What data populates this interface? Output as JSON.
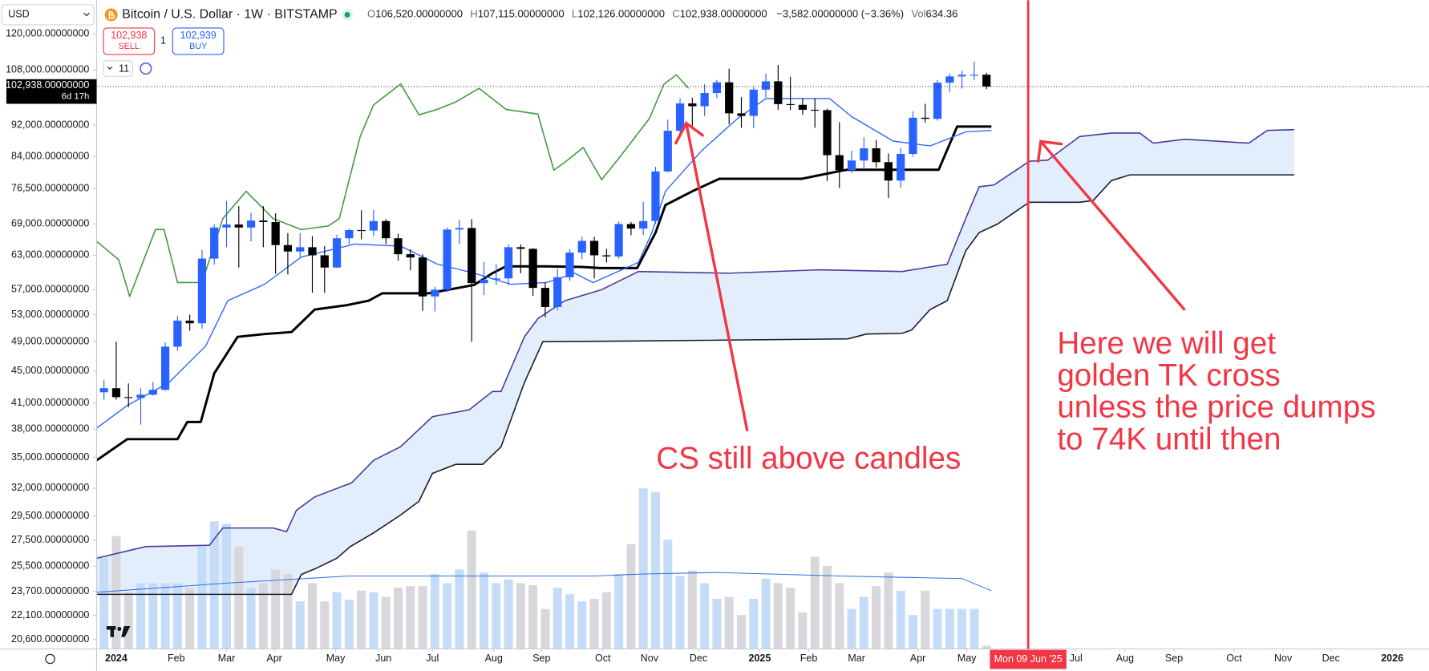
{
  "ui": {
    "currency": "USD",
    "symbol": "Bitcoin / U.S. Dollar · 1W · BITSTAMP",
    "ohlc": [
      {
        "key": "O",
        "value": "106,520.00000000"
      },
      {
        "key": "H",
        "value": "107,115.00000000"
      },
      {
        "key": "L",
        "value": "102,126.00000000"
      },
      {
        "key": "C",
        "value": "102,938.00000000"
      }
    ],
    "change": "−3,582.00000000 (−3.36%)",
    "volume_key": "Vol",
    "volume_value": "634.36",
    "sell_price": "102,938",
    "sell": "SELL",
    "quantity": "1",
    "buy_price": "102,939",
    "buy": "BUY",
    "indicators": "11"
  },
  "chart_data": {
    "type": "candlestick",
    "ylog": true,
    "grid": false,
    "ylim": [
      20050,
      132300
    ],
    "yticks": [
      {
        "value": 120000,
        "label": "120,000.00000000"
      },
      {
        "value": 108000,
        "label": "108,000.00000000"
      },
      {
        "value": 92000,
        "label": "92,000.00000000"
      },
      {
        "value": 84000,
        "label": "84,000.00000000"
      },
      {
        "value": 76500,
        "label": "76,500.00000000"
      },
      {
        "value": 69000,
        "label": "69,000.00000000"
      },
      {
        "value": 63000,
        "label": "63,000.00000000"
      },
      {
        "value": 57000,
        "label": "57,000.00000000"
      },
      {
        "value": 53000,
        "label": "53,000.00000000"
      },
      {
        "value": 49000,
        "label": "49,000.00000000"
      },
      {
        "value": 45000,
        "label": "45,000.00000000"
      },
      {
        "value": 41000,
        "label": "41,000.00000000"
      },
      {
        "value": 38000,
        "label": "38,000.00000000"
      },
      {
        "value": 35000,
        "label": "35,000.00000000"
      },
      {
        "value": 32000,
        "label": "32,000.00000000"
      },
      {
        "value": 29500,
        "label": "29,500.00000000"
      },
      {
        "value": 27500,
        "label": "27,500.00000000"
      },
      {
        "value": 25500,
        "label": "25,500.00000000"
      },
      {
        "value": 23700,
        "label": "23,700.00000000"
      },
      {
        "value": 22100,
        "label": "22,100.00000000"
      },
      {
        "value": 20600,
        "label": "20,600.00000000"
      }
    ],
    "xlim": [
      -0.6,
      108.1
    ],
    "xticks": [
      {
        "value": 1,
        "label": "2024"
      },
      {
        "value": 5.9,
        "label": "Feb"
      },
      {
        "value": 10,
        "label": "Mar"
      },
      {
        "value": 13.9,
        "label": "Apr"
      },
      {
        "value": 18.9,
        "label": "May"
      },
      {
        "value": 22.8,
        "label": "Jun"
      },
      {
        "value": 26.8,
        "label": "Jul"
      },
      {
        "value": 31.8,
        "label": "Aug"
      },
      {
        "value": 35.7,
        "label": "Sep"
      },
      {
        "value": 40.7,
        "label": "Oct"
      },
      {
        "value": 44.5,
        "label": "Nov"
      },
      {
        "value": 48.5,
        "label": "Dec"
      },
      {
        "value": 53.5,
        "label": "2025"
      },
      {
        "value": 57.5,
        "label": "Feb"
      },
      {
        "value": 61.4,
        "label": "Mar"
      },
      {
        "value": 66.4,
        "label": "Apr"
      },
      {
        "value": 70.4,
        "label": "May"
      },
      {
        "value": 79.3,
        "label": "Jul"
      },
      {
        "value": 83.3,
        "label": "Aug"
      },
      {
        "value": 87.3,
        "label": "Sep"
      },
      {
        "value": 92.2,
        "label": "Oct"
      },
      {
        "value": 96.2,
        "label": "Nov"
      },
      {
        "value": 100.1,
        "label": "Dec"
      },
      {
        "value": 105.1,
        "label": "2026"
      }
    ],
    "x": [
      0,
      1,
      2,
      3,
      4,
      5,
      6,
      7,
      8,
      9,
      10,
      11,
      12,
      13,
      14,
      15,
      16,
      17,
      18,
      19,
      20,
      21,
      22,
      23,
      24,
      25,
      26,
      27,
      28,
      29,
      30,
      31,
      32,
      33,
      34,
      35,
      36,
      37,
      38,
      39,
      40,
      41,
      42,
      43,
      44,
      45,
      46,
      47,
      48,
      49,
      50,
      51,
      52,
      53,
      54,
      55,
      56,
      57,
      58,
      59,
      60,
      61,
      62,
      63,
      64,
      65,
      66,
      67,
      68,
      69,
      70,
      71,
      72
    ],
    "open": [
      42300,
      42800,
      41700,
      41600,
      42000,
      42600,
      48300,
      52100,
      51700,
      62400,
      68300,
      68900,
      68300,
      69700,
      69400,
      64900,
      63700,
      64500,
      63000,
      60800,
      66200,
      67800,
      67700,
      69600,
      66200,
      63200,
      62600,
      55900,
      57000,
      67900,
      68200,
      58100,
      58700,
      58900,
      64500,
      64200,
      57300,
      54200,
      59100,
      63500,
      65700,
      63000,
      62800,
      69000,
      68100,
      69600,
      80400,
      90500,
      98000,
      97200,
      101000,
      104200,
      95200,
      94500,
      102000,
      104500,
      97800,
      97600,
      96200,
      96100,
      84300,
      80700,
      83000,
      86000,
      82600,
      78300,
      84600,
      94000,
      93700,
      104100,
      106000,
      106500,
      106520
    ],
    "high": [
      43800,
      49000,
      43400,
      42800,
      43600,
      48900,
      52800,
      53000,
      64000,
      69000,
      73800,
      72700,
      71300,
      72700,
      71200,
      67200,
      67200,
      66600,
      64700,
      66900,
      68100,
      71800,
      71900,
      70000,
      67100,
      64100,
      63200,
      57500,
      68300,
      69900,
      70000,
      61800,
      61400,
      65000,
      65000,
      64300,
      58200,
      60600,
      64100,
      66500,
      66500,
      64200,
      69500,
      69400,
      73600,
      81500,
      93500,
      99500,
      99600,
      103600,
      104900,
      108400,
      99800,
      102700,
      106900,
      109600,
      105900,
      99500,
      99500,
      96500,
      92800,
      85400,
      88800,
      88100,
      84700,
      86100,
      95800,
      97900,
      104900,
      106900,
      107800,
      110700,
      107115
    ],
    "low": [
      41400,
      41400,
      40500,
      38500,
      41900,
      42500,
      47700,
      50600,
      50900,
      61300,
      64500,
      60800,
      65600,
      64500,
      59700,
      59600,
      62700,
      56500,
      56500,
      60700,
      65000,
      66000,
      66600,
      65100,
      62000,
      60300,
      53600,
      53500,
      56600,
      65100,
      49000,
      56100,
      57800,
      57800,
      59800,
      56000,
      52600,
      53700,
      58500,
      62300,
      58900,
      61700,
      62400,
      66800,
      66800,
      69000,
      80200,
      90000,
      91000,
      94400,
      99500,
      92200,
      91300,
      91200,
      99700,
      96200,
      96100,
      94800,
      91300,
      78200,
      76600,
      80000,
      81100,
      81300,
      74400,
      76700,
      83900,
      92700,
      93200,
      101400,
      102300,
      104800,
      102126
    ],
    "close": [
      42800,
      41700,
      41600,
      42000,
      42600,
      48300,
      52100,
      51700,
      62400,
      68300,
      68900,
      68300,
      69700,
      69400,
      64900,
      63700,
      64500,
      63000,
      60800,
      66200,
      67800,
      67700,
      69600,
      66200,
      63200,
      62600,
      55900,
      57000,
      67900,
      68200,
      58100,
      58700,
      58900,
      64500,
      64200,
      57300,
      54200,
      59100,
      63500,
      65700,
      63000,
      62800,
      69000,
      68100,
      69600,
      80400,
      90500,
      98000,
      97200,
      101000,
      104200,
      95200,
      94500,
      102000,
      104500,
      97800,
      97600,
      96200,
      96100,
      84300,
      80700,
      83000,
      86000,
      82600,
      78300,
      84600,
      94000,
      93700,
      104100,
      106000,
      106500,
      106520,
      102938
    ],
    "volume": [
      18000,
      22300,
      11200,
      13000,
      13000,
      13000,
      13000,
      12100,
      20200,
      25200,
      24700,
      20200,
      12100,
      13000,
      15700,
      14800,
      9400,
      13000,
      9400,
      11200,
      9700,
      11500,
      11200,
      10300,
      12100,
      12400,
      12400,
      14800,
      13000,
      15700,
      23400,
      15100,
      13000,
      13700,
      13000,
      12600,
      7900,
      12100,
      10800,
      9400,
      9900,
      11200,
      14800,
      20700,
      31700,
      31000,
      21600,
      14400,
      15500,
      13000,
      9900,
      10300,
      6700,
      9900,
      13900,
      13000,
      12100,
      7200,
      18200,
      16400,
      13000,
      7900,
      10300,
      12400,
      15100,
      11500,
      6700,
      11500,
      7900,
      7900,
      7900,
      7900,
      634.36
    ],
    "vlim": [
      0,
      45000
    ],
    "colors": {
      "up": "#2962ff",
      "down": "#000000",
      "volume_up": "#c5dcf9",
      "volume_down": "#d8d8dc"
    },
    "volume_ma": {
      "color": "#2f6fe0",
      "x": [
        -0.6,
        10,
        20,
        30,
        40,
        44,
        50,
        60,
        70,
        72.4
      ],
      "values": [
        11200,
        13000,
        14400,
        14400,
        14400,
        14800,
        15100,
        14400,
        13900,
        11500
      ]
    },
    "lines": [
      {
        "color": "#000000",
        "width": 2.6,
        "x": [
          -0.6,
          1.9,
          6.0,
          6.8,
          7.9,
          9.0,
          10.9,
          13.1,
          15.3,
          17.2,
          19.8,
          21.6,
          22.7,
          26.5,
          30.2,
          31.7,
          32.8,
          36.1,
          39.0,
          40.5,
          43.5,
          45.0,
          45.8,
          48.0,
          50.2,
          51.0,
          56.9,
          59.9,
          60.6,
          68.1,
          69.6,
          72.4
        ],
        "values": [
          34700,
          36900,
          36900,
          38800,
          38800,
          44700,
          49700,
          50100,
          50400,
          53800,
          54500,
          55200,
          56400,
          56400,
          57800,
          59800,
          61000,
          61000,
          60900,
          60700,
          60700,
          67300,
          72900,
          75900,
          78700,
          78700,
          78700,
          80400,
          80800,
          80800,
          91600,
          91600
        ]
      },
      {
        "color": "#2962ff",
        "width": 1.2,
        "x": [
          -0.6,
          1.9,
          5.3,
          8.3,
          10.1,
          13.1,
          16.1,
          20.5,
          24.2,
          27.2,
          30.2,
          33.2,
          36.1,
          38.4,
          39.9,
          43.6,
          44.7,
          45.8,
          48.8,
          51.7,
          54.0,
          59.2,
          61.0,
          64.4,
          67.4,
          70.3,
          72.4
        ],
        "values": [
          38100,
          40700,
          43500,
          48400,
          55200,
          57900,
          62700,
          65100,
          64700,
          61400,
          59800,
          57900,
          58200,
          59800,
          58200,
          61700,
          67300,
          75900,
          85500,
          93800,
          99400,
          99400,
          94300,
          87800,
          86600,
          90200,
          90600
        ]
      },
      {
        "color": "#43993e",
        "width": 1.4,
        "x": [
          -0.6,
          1.2,
          2.1,
          4.2,
          4.9,
          6.0,
          8.0,
          9.7,
          11.6,
          13.8,
          16.1,
          18.3,
          19.2,
          20.9,
          22.0,
          24.2,
          25.7,
          27.2,
          28.7,
          30.6,
          32.8,
          35.4,
          36.7,
          37.6,
          39.1,
          40.6,
          42.1,
          44.5,
          45.7,
          46.7,
          47.7
        ],
        "values": [
          65600,
          62200,
          55900,
          67900,
          67900,
          58200,
          58200,
          70100,
          75900,
          70100,
          67900,
          68600,
          70100,
          89000,
          97600,
          103700,
          94800,
          96300,
          98400,
          102400,
          96300,
          95000,
          80700,
          82600,
          86200,
          78500,
          83900,
          93800,
          103700,
          106500,
          102400
        ]
      }
    ],
    "cloud": {
      "color": "#e3eefc",
      "upper": {
        "color": "#4a3a9c",
        "width": 1.4,
        "x": [
          -0.6,
          3.4,
          8.6,
          9.7,
          13.8,
          14.9,
          15.7,
          17.2,
          20.2,
          22.0,
          24.2,
          26.8,
          29.8,
          31.7,
          32.4,
          34.3,
          35.4,
          37.6,
          40.6,
          43.6,
          51.0,
          58.4,
          65.1,
          68.8,
          70.3,
          71.4,
          72.6,
          75.5,
          77.0,
          79.6,
          82.2,
          84.5,
          85.6,
          88.2,
          93.4,
          94.9,
          97.1
        ],
        "values": [
          26100,
          27000,
          27100,
          28500,
          28500,
          28200,
          30000,
          31200,
          32500,
          34700,
          36100,
          39400,
          40200,
          42400,
          42400,
          49700,
          52400,
          55200,
          57000,
          60100,
          59800,
          60400,
          60100,
          61400,
          70100,
          76900,
          77300,
          82800,
          83100,
          89000,
          89900,
          89900,
          87300,
          88300,
          87300,
          90600,
          90800
        ]
      },
      "lower": {
        "color": "#1c1c2b",
        "width": 1.4,
        "x": [
          -0.6,
          15.3,
          16.1,
          17.2,
          19.0,
          20.1,
          22.0,
          24.2,
          25.7,
          26.8,
          28.7,
          30.9,
          32.4,
          34.3,
          35.8,
          43.6,
          60.7,
          62.2,
          65.1,
          65.9,
          67.4,
          68.8,
          70.3,
          71.4,
          72.9,
          74.8,
          75.5,
          79.6,
          80.7,
          82.2,
          83.7,
          97.1
        ],
        "values": [
          23500,
          23500,
          24900,
          25300,
          26100,
          27000,
          28100,
          29600,
          30800,
          33400,
          34300,
          34300,
          36100,
          43500,
          49000,
          49100,
          49400,
          50100,
          50200,
          50700,
          53800,
          55200,
          63800,
          67300,
          69000,
          72300,
          73500,
          73500,
          73900,
          78300,
          79600,
          79600
        ]
      }
    },
    "price_line": {
      "value": 102938,
      "label": "102,938.00000000",
      "countdown": "6d 17h"
    },
    "crosshair": {
      "x": 75.4,
      "label": "Mon 09 Jun '25"
    },
    "annotations": [
      "CS still above candles",
      [
        "Here we will get",
        "golden TK cross",
        "unless the price dumps",
        "to 74K until then"
      ]
    ]
  }
}
